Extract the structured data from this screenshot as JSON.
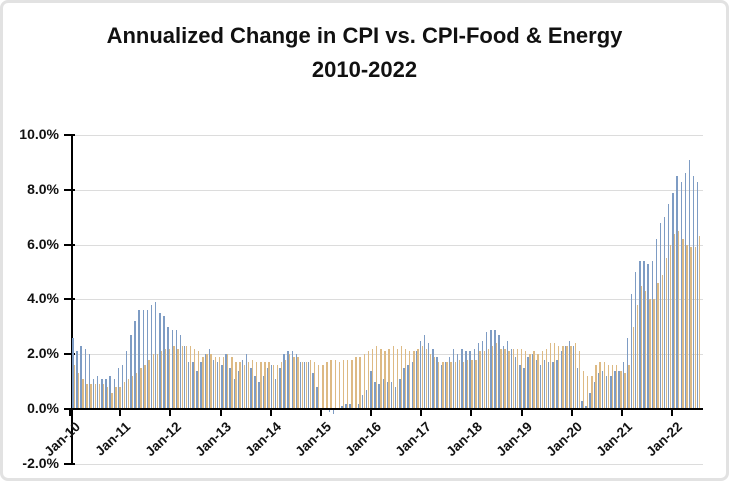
{
  "title": {
    "line1": "Annualized Change in CPI vs. CPI-Food & Energy",
    "line2": "2010-2022"
  },
  "chart_data": {
    "type": "bar",
    "title": "Annualized Change in CPI vs. CPI-Food & Energy 2010-2022",
    "x_unit": "month",
    "x_start": "Jan-2010",
    "x_end": "Aug-2022",
    "x_tick_labels": [
      "Jan-10",
      "Jan-11",
      "Jan-12",
      "Jan-13",
      "Jan-14",
      "Jan-15",
      "Jan-16",
      "Jan-17",
      "Jan-18",
      "Jan-19",
      "Jan-20",
      "Jan-21",
      "Jan-22"
    ],
    "y_tick_labels": [
      "10.0%",
      "8.0%",
      "6.0%",
      "4.0%",
      "2.0%",
      "0.0%",
      "-2.0%"
    ],
    "y_tick_values": [
      10,
      8,
      6,
      4,
      2,
      0,
      -2
    ],
    "ylim": [
      -2,
      10
    ],
    "y_unit": "percent",
    "grid": true,
    "legend_position": "none",
    "colors": {
      "cpi_bar": "#7e9cc4",
      "core_bar": "#ddba84",
      "gridline": "#dcdcdc",
      "axis": "#000000",
      "text": "#111111"
    },
    "series": [
      {
        "name": "CPI",
        "color": "#7e9cc4",
        "values": [
          2.6,
          2.1,
          2.3,
          2.2,
          2.0,
          1.1,
          1.2,
          1.1,
          1.1,
          1.2,
          1.1,
          1.5,
          1.6,
          2.1,
          2.7,
          3.2,
          3.6,
          3.6,
          3.6,
          3.8,
          3.9,
          3.5,
          3.4,
          3.0,
          2.9,
          2.9,
          2.7,
          2.3,
          1.7,
          1.7,
          1.4,
          1.7,
          2.0,
          2.2,
          1.8,
          1.7,
          1.6,
          2.0,
          1.5,
          1.1,
          1.4,
          1.8,
          2.0,
          1.5,
          1.2,
          1.0,
          1.2,
          1.5,
          1.6,
          1.1,
          1.5,
          2.0,
          2.1,
          2.1,
          2.0,
          1.7,
          1.7,
          1.7,
          1.3,
          0.8,
          -0.1,
          0.0,
          -0.1,
          -0.2,
          0.0,
          0.1,
          0.2,
          0.2,
          0.0,
          0.2,
          0.5,
          0.7,
          1.4,
          1.0,
          0.9,
          1.1,
          1.0,
          1.0,
          0.8,
          1.1,
          1.5,
          1.6,
          1.7,
          2.1,
          2.5,
          2.7,
          2.4,
          2.2,
          1.9,
          1.6,
          1.7,
          1.9,
          2.2,
          2.0,
          2.2,
          2.1,
          2.1,
          2.2,
          2.4,
          2.5,
          2.8,
          2.9,
          2.9,
          2.7,
          2.3,
          2.5,
          2.2,
          1.9,
          1.6,
          1.5,
          1.9,
          2.0,
          1.8,
          1.6,
          1.8,
          1.7,
          1.7,
          1.8,
          2.1,
          2.3,
          2.5,
          2.3,
          1.5,
          0.3,
          0.1,
          0.6,
          1.0,
          1.3,
          1.4,
          1.2,
          1.2,
          1.4,
          1.4,
          1.7,
          2.6,
          4.2,
          5.0,
          5.4,
          5.4,
          5.3,
          5.4,
          6.2,
          6.8,
          7.0,
          7.5,
          7.9,
          8.5,
          8.3,
          8.6,
          9.1,
          8.5,
          8.3
        ]
      },
      {
        "name": "CPI-Food & Energy",
        "color": "#ddba84",
        "values": [
          1.6,
          1.3,
          1.1,
          0.9,
          0.9,
          0.9,
          0.9,
          0.9,
          0.8,
          0.6,
          0.8,
          0.8,
          1.0,
          1.1,
          1.2,
          1.3,
          1.5,
          1.6,
          1.8,
          2.0,
          2.0,
          2.1,
          2.2,
          2.2,
          2.3,
          2.2,
          2.3,
          2.3,
          2.3,
          2.2,
          2.1,
          1.9,
          2.0,
          2.0,
          1.9,
          1.9,
          1.9,
          2.0,
          1.9,
          1.7,
          1.7,
          1.6,
          1.7,
          1.8,
          1.7,
          1.7,
          1.7,
          1.7,
          1.6,
          1.6,
          1.7,
          1.8,
          2.0,
          1.9,
          1.9,
          1.7,
          1.7,
          1.8,
          1.7,
          1.6,
          1.6,
          1.7,
          1.8,
          1.8,
          1.7,
          1.8,
          1.8,
          1.8,
          1.9,
          1.9,
          2.0,
          2.1,
          2.2,
          2.3,
          2.2,
          2.1,
          2.2,
          2.3,
          2.2,
          2.3,
          2.2,
          2.1,
          2.1,
          2.2,
          2.3,
          2.2,
          2.0,
          1.9,
          1.7,
          1.7,
          1.7,
          1.7,
          1.7,
          1.8,
          1.7,
          1.8,
          1.8,
          1.8,
          2.1,
          2.1,
          2.2,
          2.3,
          2.4,
          2.2,
          2.2,
          2.1,
          2.2,
          2.2,
          2.2,
          2.1,
          2.0,
          2.1,
          2.0,
          2.1,
          2.2,
          2.4,
          2.4,
          2.3,
          2.3,
          2.3,
          2.3,
          2.4,
          2.1,
          1.4,
          1.2,
          1.2,
          1.6,
          1.7,
          1.7,
          1.6,
          1.6,
          1.6,
          1.4,
          1.3,
          1.6,
          3.0,
          3.8,
          4.5,
          4.3,
          4.0,
          4.0,
          4.6,
          4.9,
          5.5,
          6.0,
          6.4,
          6.5,
          6.2,
          6.0,
          5.9,
          5.9,
          6.3
        ]
      }
    ]
  }
}
